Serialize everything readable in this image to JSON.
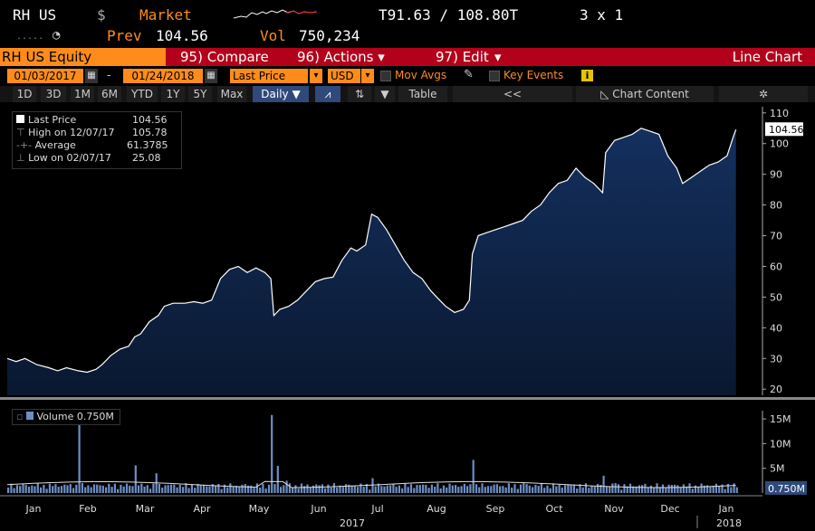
{
  "header": {
    "ticker": "RH US",
    "currency_symbol": "$",
    "market_label": "Market",
    "bid_ask": "T91.63 / 108.80T",
    "grid_size": "3 x 1",
    "prev_label": "Prev",
    "prev_value": "104.56",
    "vol_label": "Vol",
    "vol_value": "750,234"
  },
  "toolbar": {
    "security": "RH US Equity",
    "compare": "95) Compare",
    "actions": "96) Actions",
    "edit": "97) Edit",
    "chart_type": "Line Chart"
  },
  "controls": {
    "start_date": "01/03/2017",
    "end_date": "01/24/2018",
    "field": "Last Price",
    "currency": "USD",
    "mov_avgs": "Mov Avgs",
    "key_events": "Key Events",
    "info_icon": "i"
  },
  "periods": {
    "items": [
      "1D",
      "3D",
      "1M",
      "6M",
      "YTD",
      "1Y",
      "5Y",
      "Max"
    ],
    "frequency": "Daily",
    "table": "Table",
    "collapse": "<<",
    "chart_content": "Chart Content"
  },
  "legend": {
    "last_label": "Last Price",
    "last_value": "104.56",
    "high_label": "High on 12/07/17",
    "high_value": "105.78",
    "avg_label": "Average",
    "avg_value": "61.3785",
    "low_label": "Low on 02/07/17",
    "low_value": "25.08"
  },
  "volume_legend": "Volume 0.750M",
  "price_tag": "104.56",
  "volume_tag": "0.750M",
  "colors": {
    "accent": "#ff8c1a",
    "toolbar": "#b3001b",
    "area": "#0c1f3f",
    "line": "#ffffff"
  },
  "chart_data": [
    {
      "type": "area",
      "title": "",
      "x": [
        "Jan",
        "Feb",
        "Mar",
        "Apr",
        "May",
        "Jun",
        "Jul",
        "Aug",
        "Sep",
        "Oct",
        "Nov",
        "Dec",
        "Jan"
      ],
      "year_labels": [
        "2017",
        "2018"
      ],
      "ylim": [
        18,
        112
      ],
      "y_ticks": [
        20,
        30,
        40,
        50,
        60,
        70,
        80,
        90,
        100,
        110
      ],
      "series": [
        {
          "values": [
            [
              0,
              30
            ],
            [
              3,
              29
            ],
            [
              6,
              30
            ],
            [
              10,
              28
            ],
            [
              14,
              27
            ],
            [
              17,
              26
            ],
            [
              20,
              27
            ],
            [
              24,
              26
            ],
            [
              27,
              25.5
            ],
            [
              30,
              26.5
            ],
            [
              32,
              28
            ],
            [
              35,
              31
            ],
            [
              38,
              33
            ],
            [
              41,
              34
            ],
            [
              43,
              37
            ],
            [
              45,
              38
            ],
            [
              48,
              42
            ],
            [
              51,
              44
            ],
            [
              53,
              47
            ],
            [
              56,
              48
            ],
            [
              60,
              48
            ],
            [
              63,
              48.5
            ],
            [
              66,
              48
            ],
            [
              69,
              49
            ],
            [
              72,
              56
            ],
            [
              75,
              59
            ],
            [
              78,
              60
            ],
            [
              81,
              58
            ],
            [
              84,
              59.5
            ],
            [
              87,
              58
            ],
            [
              89,
              56
            ],
            [
              90,
              44
            ],
            [
              92,
              46
            ],
            [
              95,
              47
            ],
            [
              98,
              49
            ],
            [
              101,
              52
            ],
            [
              104,
              55
            ],
            [
              107,
              56
            ],
            [
              110,
              56.5
            ],
            [
              113,
              62
            ],
            [
              116,
              66
            ],
            [
              118,
              65
            ],
            [
              121,
              67
            ],
            [
              123,
              77
            ],
            [
              125,
              76
            ],
            [
              128,
              72
            ],
            [
              131,
              67
            ],
            [
              134,
              62
            ],
            [
              137,
              58
            ],
            [
              140,
              56
            ],
            [
              143,
              52
            ],
            [
              145,
              50
            ],
            [
              148,
              47
            ],
            [
              151,
              45
            ],
            [
              154,
              46
            ],
            [
              156,
              49
            ],
            [
              157,
              64
            ],
            [
              159,
              70
            ],
            [
              162,
              71
            ],
            [
              165,
              72
            ],
            [
              168,
              73
            ],
            [
              171,
              74
            ],
            [
              174,
              75
            ],
            [
              177,
              78
            ],
            [
              180,
              80
            ],
            [
              183,
              84
            ],
            [
              186,
              87
            ],
            [
              189,
              88
            ],
            [
              192,
              92
            ],
            [
              195,
              89
            ],
            [
              198,
              87
            ],
            [
              201,
              84
            ],
            [
              202,
              97
            ],
            [
              205,
              101
            ],
            [
              208,
              102
            ],
            [
              211,
              103
            ],
            [
              214,
              105
            ],
            [
              217,
              104
            ],
            [
              220,
              103
            ],
            [
              223,
              96
            ],
            [
              226,
              92
            ],
            [
              228,
              87
            ],
            [
              231,
              89
            ],
            [
              234,
              91
            ],
            [
              237,
              93
            ],
            [
              240,
              94
            ],
            [
              243,
              96
            ],
            [
              245,
              102
            ],
            [
              246,
              104.56
            ]
          ]
        }
      ]
    },
    {
      "type": "bar",
      "title": "",
      "series": [
        {
          "name": "Volume",
          "unit": "M"
        }
      ],
      "ylim": [
        0,
        18.5
      ],
      "y_ticks": [
        5,
        10,
        15
      ],
      "y_tick_labels": [
        "5M",
        "10M",
        "15M"
      ],
      "last_value": 0.75,
      "spikes": [
        [
          24,
          14
        ],
        [
          43,
          5.6
        ],
        [
          50,
          4
        ],
        [
          62,
          1.8
        ],
        [
          81,
          1.5
        ],
        [
          89,
          15.8
        ],
        [
          91,
          5.5
        ],
        [
          94,
          2.5
        ],
        [
          123,
          3
        ],
        [
          157,
          6.7
        ],
        [
          174,
          2
        ],
        [
          201,
          3.5
        ],
        [
          205,
          2
        ]
      ]
    }
  ]
}
